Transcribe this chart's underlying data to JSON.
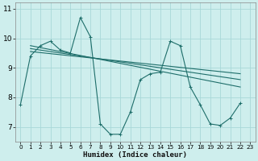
{
  "xlabel": "Humidex (Indice chaleur)",
  "bg_color": "#ceeeed",
  "grid_color": "#a8d8d8",
  "line_color": "#1e6e6a",
  "xlim": [
    -0.5,
    23.5
  ],
  "ylim": [
    6.5,
    11.2
  ],
  "xticks": [
    0,
    1,
    2,
    3,
    4,
    5,
    6,
    7,
    8,
    9,
    10,
    11,
    12,
    13,
    14,
    15,
    16,
    17,
    18,
    19,
    20,
    21,
    22,
    23
  ],
  "yticks": [
    7,
    8,
    9,
    10,
    11
  ],
  "main_line": {
    "x": [
      0,
      1,
      2,
      3,
      4,
      5,
      6,
      7,
      8,
      9,
      10,
      11,
      12,
      13,
      14,
      15,
      16,
      17,
      18,
      19,
      20,
      21,
      22
    ],
    "y": [
      7.75,
      9.4,
      9.75,
      9.9,
      9.6,
      9.5,
      10.7,
      10.05,
      7.1,
      6.75,
      6.75,
      7.5,
      8.6,
      8.8,
      8.85,
      9.9,
      9.75,
      8.35,
      7.75,
      7.1,
      7.05,
      7.3,
      7.8
    ]
  },
  "trend_lines": [
    {
      "x": [
        1,
        22
      ],
      "y": [
        9.75,
        8.35
      ]
    },
    {
      "x": [
        1,
        22
      ],
      "y": [
        9.65,
        8.6
      ]
    },
    {
      "x": [
        1,
        22
      ],
      "y": [
        9.55,
        8.8
      ]
    }
  ]
}
